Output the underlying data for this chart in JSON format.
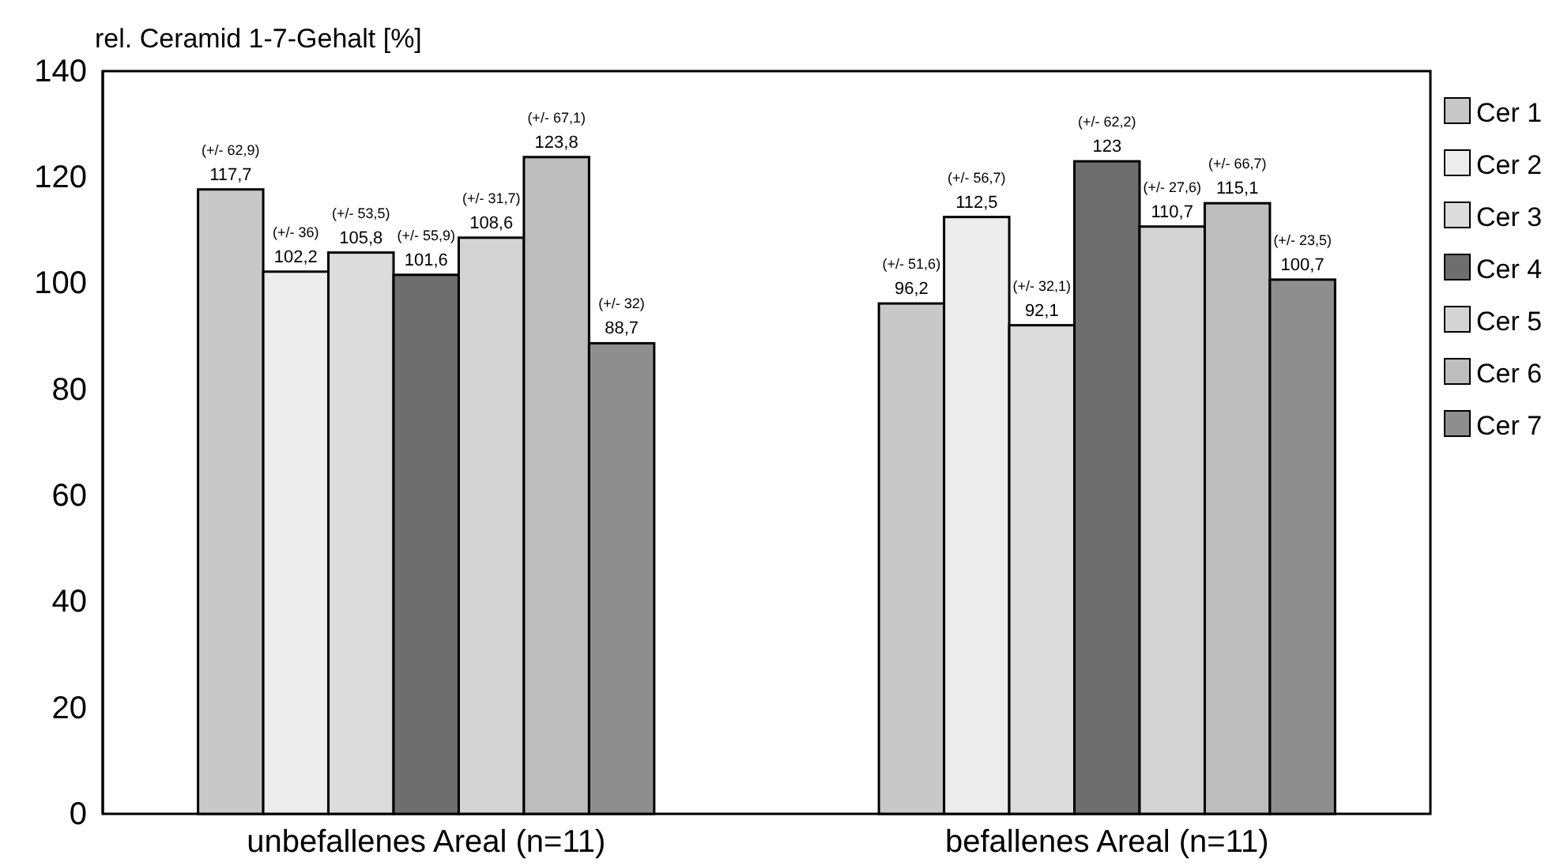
{
  "chart_data": {
    "type": "bar",
    "ylabel": "rel. Ceramid 1-7-Gehalt [%]",
    "categories": [
      "unbefallenes Areal (n=11)",
      "befallenes Areal (n=11)"
    ],
    "series": [
      {
        "name": "Cer 1",
        "color": "#c8c8c8",
        "values": [
          117.7,
          96.2
        ],
        "value_labels": [
          "117,7",
          "96,2"
        ]
      },
      {
        "name": "Cer 2",
        "color": "#ececec",
        "values": [
          102.2,
          112.5
        ],
        "value_labels": [
          "102,2",
          "112,5"
        ]
      },
      {
        "name": "Cer 3",
        "color": "#dcdcdc",
        "values": [
          105.8,
          92.1
        ],
        "value_labels": [
          "105,8",
          "92,1"
        ]
      },
      {
        "name": "Cer 4",
        "color": "#6e6e6e",
        "values": [
          101.6,
          123
        ],
        "value_labels": [
          "101,6",
          "123"
        ]
      },
      {
        "name": "Cer 5",
        "color": "#d4d4d4",
        "values": [
          108.6,
          110.7
        ],
        "value_labels": [
          "108,6",
          "110,7"
        ]
      },
      {
        "name": "Cer 6",
        "color": "#bdbdbd",
        "values": [
          123.8,
          115.1
        ],
        "value_labels": [
          "123,8",
          "115,1"
        ]
      },
      {
        "name": "Cer 7",
        "color": "#8e8e8e",
        "values": [
          88.7,
          100.7
        ],
        "value_labels": [
          "88,7",
          "100,7"
        ]
      }
    ],
    "annotations": [
      "(+/- 62,9)",
      "(+/- 36)",
      "(+/- 53,5)",
      "(+/- 55,9)",
      "(+/- 31,7)",
      "(+/- 67,1)",
      "(+/- 32)",
      "(+/- 51,6)",
      "(+/- 56,7)",
      "(+/- 32,1)",
      "(+/- 62,2)",
      "(+/- 27,6)",
      "(+/- 66,7)",
      "(+/- 23,5)"
    ],
    "ylim": [
      0,
      140
    ],
    "yticks": [
      0,
      20,
      40,
      60,
      80,
      100,
      120,
      140
    ],
    "grid": false,
    "legend": "right"
  }
}
